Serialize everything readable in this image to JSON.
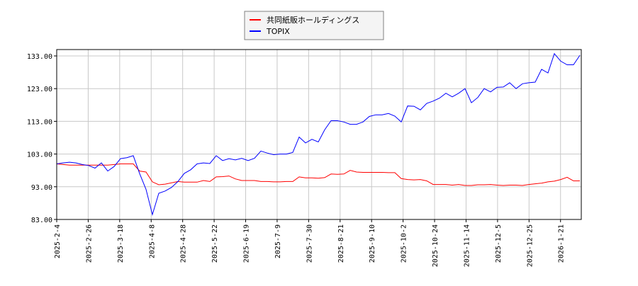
{
  "chart_data": {
    "type": "line",
    "title": "",
    "xlabel": "",
    "ylabel": "",
    "ylim": [
      83,
      134.5
    ],
    "yticks": [
      "83.00",
      "93.00",
      "103.00",
      "113.00",
      "123.00",
      "133.00"
    ],
    "ytick_values": [
      83,
      93,
      103,
      113,
      123,
      133
    ],
    "xtick_labels": [
      "2025-2-4",
      "2025-2-26",
      "2025-3-18",
      "2025-4-8",
      "2025-4-28",
      "2025-5-22",
      "2025-6-19",
      "2025-7-9",
      "2025-7-30",
      "2025-8-21",
      "2025-9-10",
      "2025-10-2",
      "2025-10-24",
      "2025-11-14",
      "2025-12-5",
      "2025-12-25",
      "2026-1-21"
    ],
    "grid": true,
    "legend_placement": "top-center",
    "series": [
      {
        "name": "共同紙販ホールディングス",
        "color": "#ff0000",
        "values": [
          100,
          99.8,
          99.6,
          99.6,
          99.6,
          99.6,
          99.6,
          99.6,
          99.6,
          99.8,
          100,
          100,
          100,
          97.8,
          97.5,
          94.5,
          93.6,
          93.8,
          94.2,
          94.6,
          94.4,
          94.4,
          94.4,
          94.9,
          94.6,
          96,
          96.1,
          96.3,
          95.4,
          94.9,
          94.9,
          94.9,
          94.6,
          94.6,
          94.5,
          94.5,
          94.6,
          94.6,
          96,
          95.7,
          95.7,
          95.6,
          95.8,
          96.9,
          96.8,
          96.9,
          98,
          97.5,
          97.4,
          97.4,
          97.4,
          97.4,
          97.3,
          97.3,
          95.5,
          95.2,
          95.1,
          95.2,
          94.8,
          93.7,
          93.7,
          93.7,
          93.5,
          93.7,
          93.4,
          93.4,
          93.6,
          93.6,
          93.7,
          93.5,
          93.4,
          93.5,
          93.5,
          93.4,
          93.7,
          93.9,
          94.1,
          94.5,
          94.7,
          95.2,
          95.9,
          94.8,
          94.8
        ]
      },
      {
        "name": "TOPIX",
        "color": "#0000ff",
        "values": [
          100,
          100.3,
          100.5,
          100.3,
          99.8,
          99.5,
          98.7,
          100.3,
          97.8,
          99.2,
          101.6,
          101.9,
          102.5,
          97,
          92.2,
          84.5,
          91,
          91.7,
          92.8,
          94.6,
          97.1,
          98.2,
          100,
          100.3,
          100.1,
          102.5,
          101,
          101.6,
          101.2,
          101.7,
          101,
          101.7,
          103.9,
          103.3,
          102.8,
          103,
          103,
          103.5,
          108.2,
          106.4,
          107.5,
          106.7,
          110.4,
          113.2,
          113.2,
          112.8,
          112.1,
          112.1,
          112.8,
          114.5,
          115,
          115,
          115.4,
          114.6,
          112.8,
          117.7,
          117.6,
          116.5,
          118.5,
          119.2,
          120.1,
          121.6,
          120.5,
          121.6,
          123,
          118.7,
          120.3,
          123,
          122,
          123.4,
          123.5,
          124.8,
          123,
          124.5,
          124.8,
          125,
          128.9,
          127.8,
          133.7,
          131.4,
          130.3,
          130.3,
          133.2
        ]
      }
    ]
  }
}
